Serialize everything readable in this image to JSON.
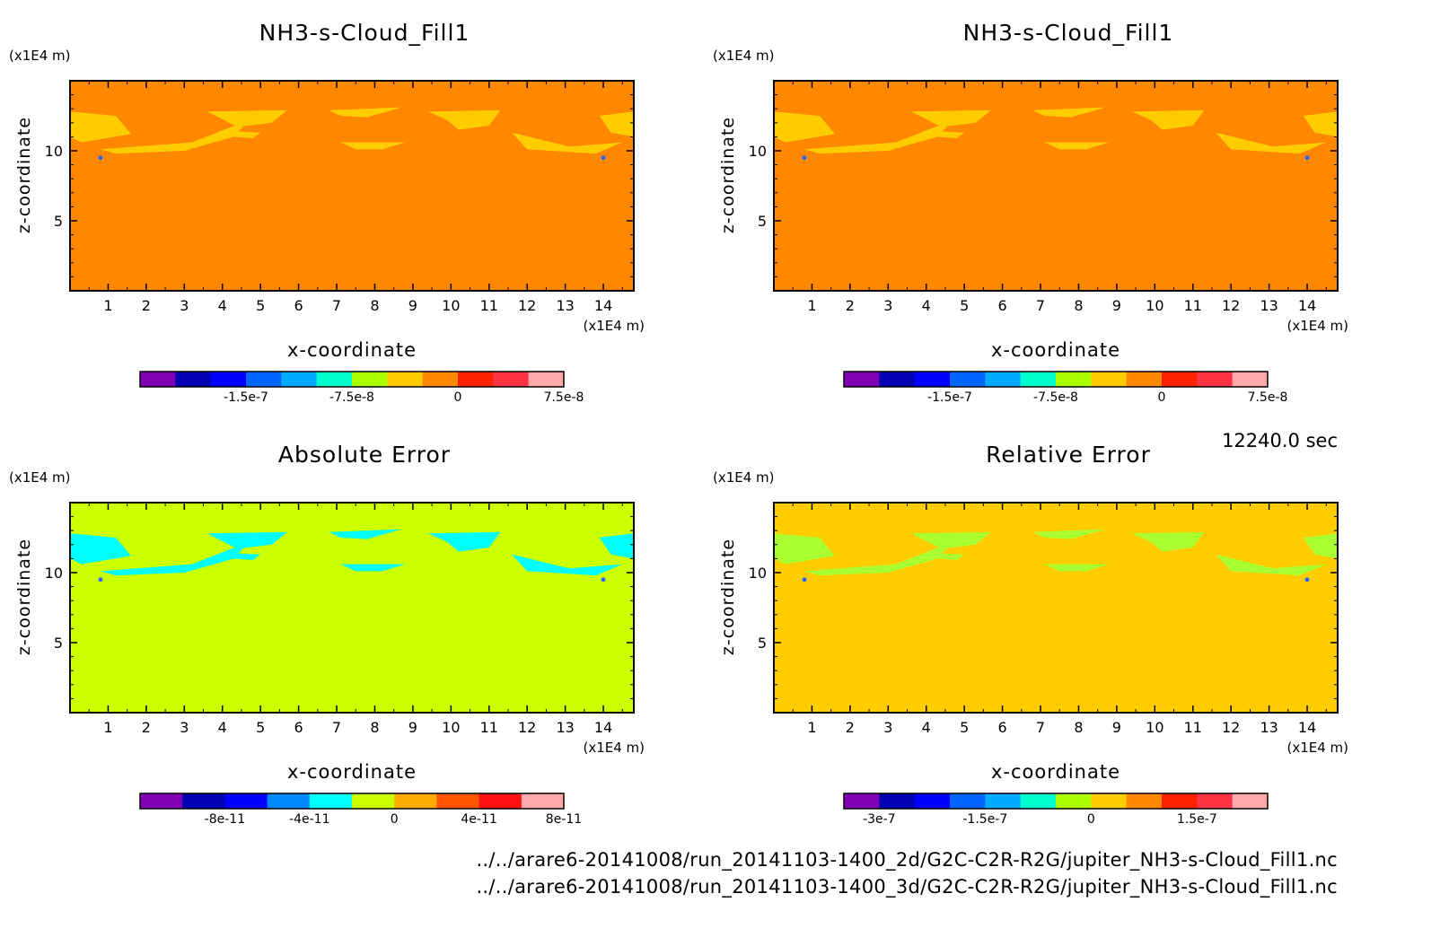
{
  "time_label": "12240.0 sec",
  "files": [
    "../../arare6-20141008/run_20141103-1400_2d/G2C-C2R-R2G/jupiter_NH3-s-Cloud_Fill1.nc",
    "../../arare6-20141008/run_20141103-1400_3d/G2C-C2R-R2G/jupiter_NH3-s-Cloud_Fill1.nc"
  ],
  "chart_data": [
    {
      "type": "heatmap",
      "title": "NH3-s-Cloud_Fill1",
      "xlabel": "x-coordinate",
      "ylabel": "z-coordinate",
      "x_unit": "(x1E4 m)",
      "y_unit": "(x1E4 m)",
      "xlim": [
        0,
        14.8
      ],
      "ylim": [
        0,
        15
      ],
      "x_ticks": [
        1,
        2,
        3,
        4,
        5,
        6,
        7,
        8,
        9,
        10,
        11,
        12,
        13,
        14
      ],
      "y_ticks": [
        5,
        10
      ],
      "background": "#ff8800",
      "cloud_color": "#ffcc00",
      "colorbar": {
        "colors": [
          "#7f00b2",
          "#0000b2",
          "#0000ff",
          "#0066ff",
          "#00aaff",
          "#00ffcc",
          "#aaff00",
          "#ffcc00",
          "#ff8800",
          "#ff2200",
          "#ff3344",
          "#ffaaaa"
        ],
        "tick_labels": [
          "-1.5e-7",
          "-7.5e-8",
          "0",
          "7.5e-8"
        ],
        "tick_positions": [
          2,
          5,
          8,
          11
        ]
      }
    },
    {
      "type": "heatmap",
      "title": "NH3-s-Cloud_Fill1",
      "xlabel": "x-coordinate",
      "ylabel": "z-coordinate",
      "x_unit": "(x1E4 m)",
      "y_unit": "(x1E4 m)",
      "xlim": [
        0,
        14.8
      ],
      "ylim": [
        0,
        15
      ],
      "x_ticks": [
        1,
        2,
        3,
        4,
        5,
        6,
        7,
        8,
        9,
        10,
        11,
        12,
        13,
        14
      ],
      "y_ticks": [
        5,
        10
      ],
      "background": "#ff8800",
      "cloud_color": "#ffcc00",
      "colorbar": {
        "colors": [
          "#7f00b2",
          "#0000b2",
          "#0000ff",
          "#0066ff",
          "#00aaff",
          "#00ffcc",
          "#aaff00",
          "#ffcc00",
          "#ff8800",
          "#ff2200",
          "#ff3344",
          "#ffaaaa"
        ],
        "tick_labels": [
          "-1.5e-7",
          "-7.5e-8",
          "0",
          "7.5e-8"
        ],
        "tick_positions": [
          2,
          5,
          8,
          11
        ]
      }
    },
    {
      "type": "heatmap",
      "title": "Absolute Error",
      "xlabel": "x-coordinate",
      "ylabel": "z-coordinate",
      "x_unit": "(x1E4 m)",
      "y_unit": "(x1E4 m)",
      "xlim": [
        0,
        14.8
      ],
      "ylim": [
        0,
        15
      ],
      "x_ticks": [
        1,
        2,
        3,
        4,
        5,
        6,
        7,
        8,
        9,
        10,
        11,
        12,
        13,
        14
      ],
      "y_ticks": [
        5,
        10
      ],
      "background": "#ccff00",
      "cloud_color": "#00ffff",
      "colorbar": {
        "colors": [
          "#7f00b2",
          "#0000b2",
          "#0000ff",
          "#0088ff",
          "#00ffff",
          "#ccff00",
          "#ffaa00",
          "#ff5500",
          "#ff1111",
          "#ffaaaa"
        ],
        "tick_labels": [
          "-8e-11",
          "-4e-11",
          "0",
          "4e-11",
          "8e-11"
        ],
        "tick_positions": [
          1,
          3,
          5,
          7,
          9
        ]
      }
    },
    {
      "type": "heatmap",
      "title": "Relative Error",
      "xlabel": "x-coordinate",
      "ylabel": "z-coordinate",
      "x_unit": "(x1E4 m)",
      "y_unit": "(x1E4 m)",
      "xlim": [
        0,
        14.8
      ],
      "ylim": [
        0,
        15
      ],
      "x_ticks": [
        1,
        2,
        3,
        4,
        5,
        6,
        7,
        8,
        9,
        10,
        11,
        12,
        13,
        14
      ],
      "y_ticks": [
        5,
        10
      ],
      "background": "#ffcc00",
      "cloud_color": "#aaff33",
      "colorbar": {
        "colors": [
          "#7f00b2",
          "#0000b2",
          "#0000ff",
          "#0066ff",
          "#00aaff",
          "#00ffcc",
          "#aaff00",
          "#ffcc00",
          "#ff8800",
          "#ff2200",
          "#ff3344",
          "#ffaaaa"
        ],
        "tick_labels": [
          "-3e-7",
          "-1.5e-7",
          "0",
          "1.5e-7"
        ],
        "tick_positions": [
          0,
          3,
          6,
          9
        ]
      }
    }
  ]
}
